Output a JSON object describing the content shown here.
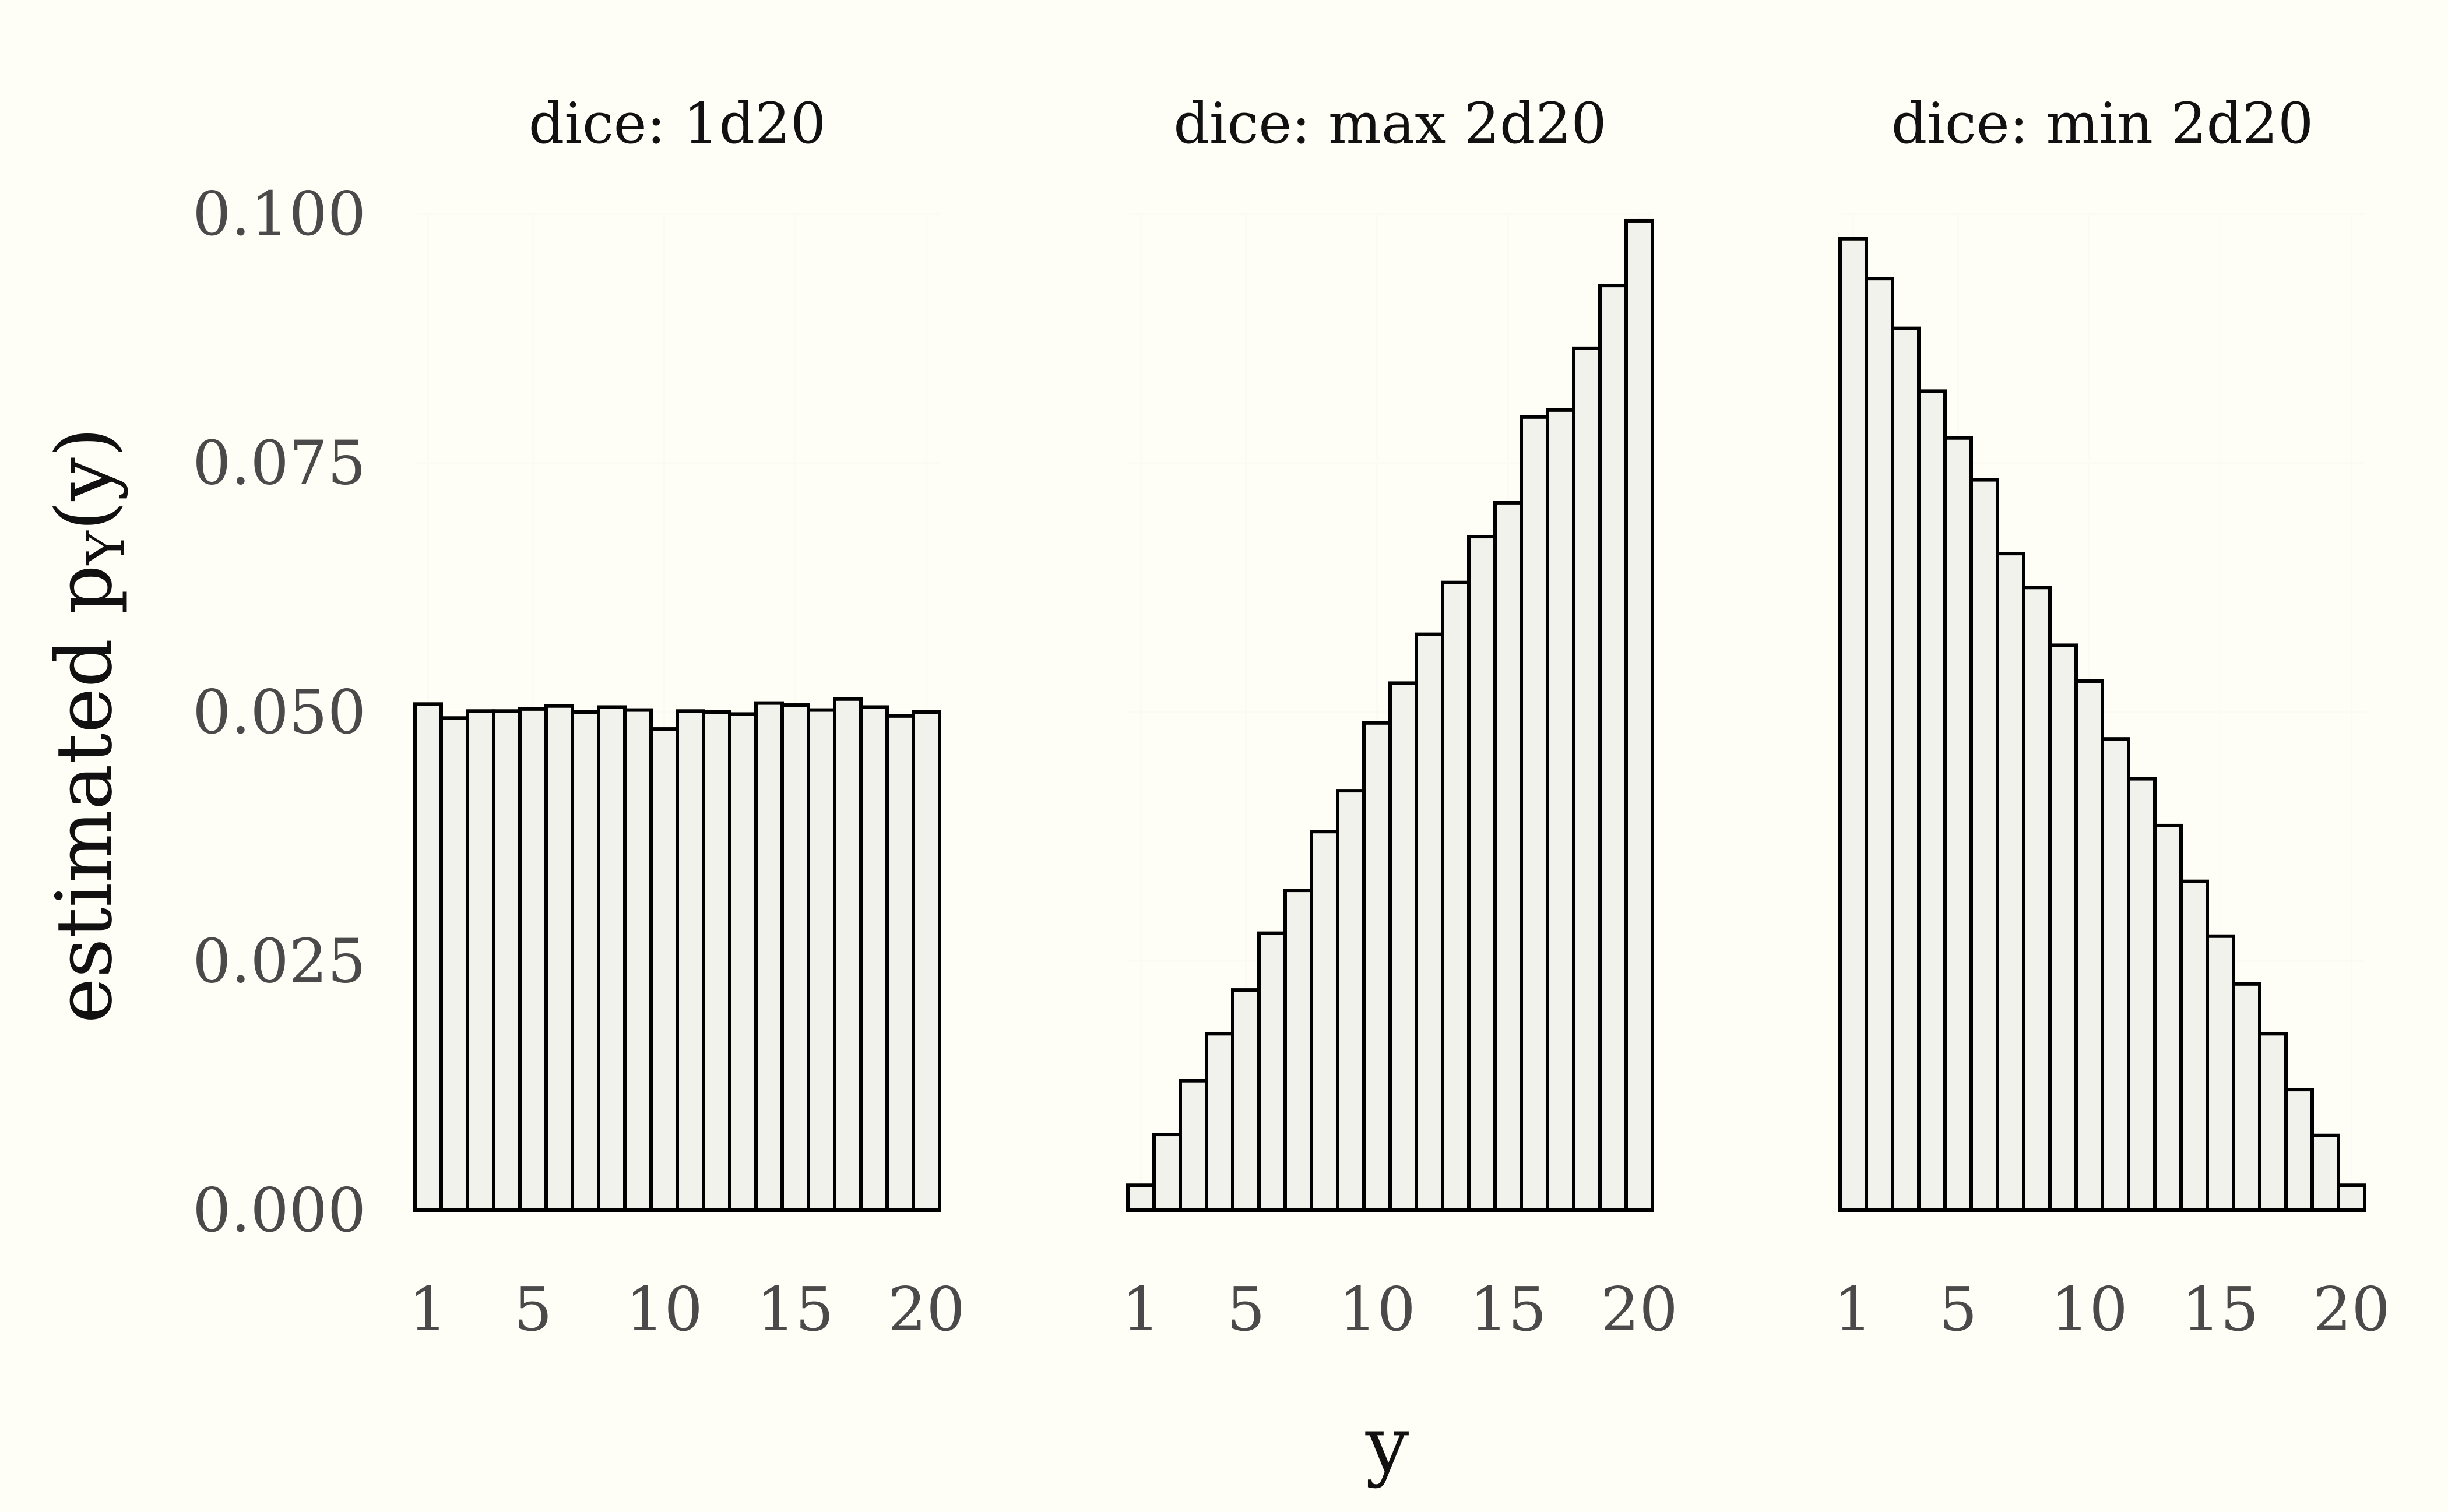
{
  "chart_data": {
    "type": "bar",
    "layout": "faceted",
    "ylabel": "estimated p",
    "ylabel_subscript": "Y",
    "ylabel_suffix": "(y)",
    "xlabel": "y",
    "ylim": [
      0,
      0.1
    ],
    "y_ticks": [
      "0.000",
      "0.025",
      "0.050",
      "0.075",
      "0.100"
    ],
    "y_tick_values": [
      0,
      0.025,
      0.05,
      0.075,
      0.1
    ],
    "x_ticks": [
      "1",
      "5",
      "10",
      "15",
      "20"
    ],
    "x_tick_values": [
      1,
      5,
      10,
      15,
      20
    ],
    "categories": [
      1,
      2,
      3,
      4,
      5,
      6,
      7,
      8,
      9,
      10,
      11,
      12,
      13,
      14,
      15,
      16,
      17,
      18,
      19,
      20
    ],
    "grid": true,
    "legend": "none",
    "colors": {
      "bar_fill": "#F1F2EC",
      "bar_stroke": "#000000",
      "background": "#FFFEF6"
    },
    "panels": [
      {
        "title": "dice: 1d20",
        "values": [
          0.0508,
          0.0494,
          0.0501,
          0.0501,
          0.0503,
          0.0506,
          0.05,
          0.0505,
          0.0502,
          0.0483,
          0.0501,
          0.05,
          0.0498,
          0.0509,
          0.0507,
          0.0502,
          0.0513,
          0.0505,
          0.0496,
          0.05
        ]
      },
      {
        "title": "dice: max 2d20",
        "values": [
          0.0025,
          0.0076,
          0.013,
          0.0177,
          0.0221,
          0.0278,
          0.0321,
          0.038,
          0.0421,
          0.0489,
          0.0529,
          0.0578,
          0.063,
          0.0676,
          0.071,
          0.0796,
          0.0803,
          0.0865,
          0.0928,
          0.0993
        ]
      },
      {
        "title": "dice: min 2d20",
        "values": [
          0.0975,
          0.0935,
          0.0885,
          0.0822,
          0.0775,
          0.0733,
          0.0659,
          0.0625,
          0.0567,
          0.0531,
          0.0473,
          0.0433,
          0.0386,
          0.033,
          0.0275,
          0.0227,
          0.0177,
          0.0121,
          0.0075,
          0.0025
        ]
      }
    ]
  }
}
